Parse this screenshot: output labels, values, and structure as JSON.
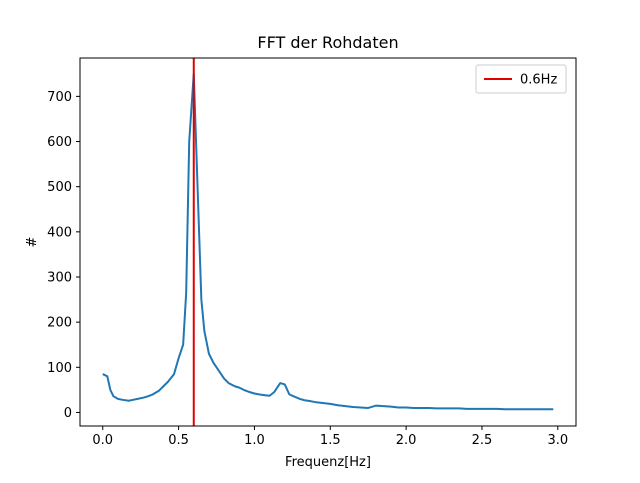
{
  "chart_data": {
    "type": "line",
    "title": "FFT der Rohdaten",
    "xlabel": "Frequenz[Hz]",
    "ylabel": "#",
    "xlim": [
      -0.15,
      3.12
    ],
    "ylim": [
      -30,
      785
    ],
    "xticks": [
      0.0,
      0.5,
      1.0,
      1.5,
      2.0,
      2.5,
      3.0
    ],
    "xtick_labels": [
      "0.0",
      "0.5",
      "1.0",
      "1.5",
      "2.0",
      "2.5",
      "3.0"
    ],
    "yticks": [
      0,
      100,
      200,
      300,
      400,
      500,
      600,
      700
    ],
    "ytick_labels": [
      "0",
      "100",
      "200",
      "300",
      "400",
      "500",
      "600",
      "700"
    ],
    "grid": false,
    "legend": {
      "position": "upper right",
      "entries": [
        {
          "label": "0.6Hz",
          "color": "#e00000"
        }
      ]
    },
    "series": [
      {
        "color": "#1f77b4",
        "x": [
          0.0,
          0.03,
          0.05,
          0.07,
          0.1,
          0.13,
          0.17,
          0.2,
          0.23,
          0.27,
          0.3,
          0.33,
          0.37,
          0.4,
          0.43,
          0.47,
          0.5,
          0.53,
          0.55,
          0.57,
          0.6,
          0.63,
          0.65,
          0.67,
          0.7,
          0.73,
          0.77,
          0.8,
          0.83,
          0.87,
          0.9,
          0.93,
          0.97,
          1.0,
          1.03,
          1.07,
          1.1,
          1.13,
          1.17,
          1.2,
          1.23,
          1.27,
          1.3,
          1.33,
          1.37,
          1.4,
          1.45,
          1.5,
          1.55,
          1.6,
          1.65,
          1.7,
          1.75,
          1.8,
          1.85,
          1.9,
          1.95,
          2.0,
          2.05,
          2.1,
          2.15,
          2.2,
          2.25,
          2.3,
          2.35,
          2.4,
          2.45,
          2.5,
          2.55,
          2.6,
          2.65,
          2.7,
          2.75,
          2.8,
          2.85,
          2.9,
          2.95,
          2.97
        ],
        "y": [
          85,
          80,
          50,
          36,
          30,
          28,
          26,
          28,
          30,
          33,
          36,
          40,
          48,
          58,
          68,
          85,
          120,
          150,
          265,
          600,
          750,
          450,
          250,
          180,
          130,
          110,
          90,
          75,
          65,
          58,
          55,
          50,
          45,
          42,
          40,
          38,
          37,
          45,
          65,
          62,
          40,
          34,
          30,
          27,
          25,
          23,
          21,
          19,
          16,
          14,
          12,
          11,
          10,
          15,
          14,
          13,
          11,
          11,
          10,
          10,
          10,
          9,
          9,
          9,
          9,
          8,
          8,
          8,
          8,
          8,
          7,
          7,
          7,
          7,
          7,
          7,
          7,
          7
        ]
      }
    ],
    "vline": {
      "x": 0.6,
      "label": "0.6Hz",
      "color": "#e00000"
    }
  }
}
